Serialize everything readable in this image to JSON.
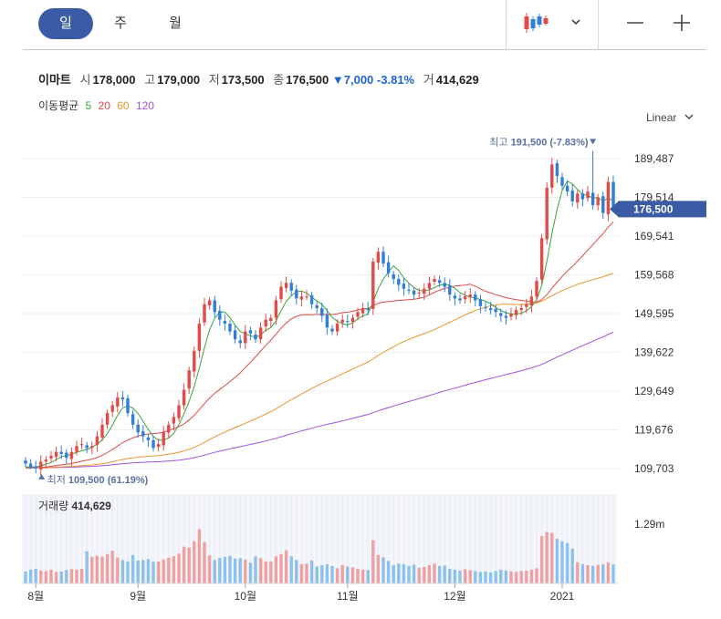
{
  "tabs": [
    {
      "label": "일",
      "active": true
    },
    {
      "label": "주",
      "active": false
    },
    {
      "label": "월",
      "active": false
    }
  ],
  "toolbar": {
    "chart_style_icon": "candlestick-icon",
    "dropdown_icon": "chevron-down-icon",
    "zoom_out_icon": "minus-icon",
    "zoom_in_icon": "plus-icon"
  },
  "stock": {
    "name": "이마트",
    "open_label": "시",
    "open": "178,000",
    "high_label": "고",
    "high": "179,000",
    "low_label": "저",
    "low": "173,500",
    "close_label": "종",
    "close": "176,500",
    "change": "▼7,000",
    "change_pct": "-3.81%",
    "volume_label": "거",
    "volume": "414,629"
  },
  "moving_average": {
    "label": "이동평균",
    "periods": [
      {
        "label": "5",
        "color": "#3aa43a"
      },
      {
        "label": "20",
        "color": "#e04a4a"
      },
      {
        "label": "60",
        "color": "#e8962e"
      },
      {
        "label": "120",
        "color": "#a050e0"
      }
    ]
  },
  "scale_mode": "Linear",
  "colors": {
    "up": "#e24a4a",
    "down": "#2f7ed8",
    "accent": "#3b5ba5",
    "vol_up": "#f0a0a0",
    "vol_down": "#8cc0ee"
  },
  "chart_data": {
    "type": "candlestick",
    "y_ticks": [
      "189,487",
      "179,514",
      "169,541",
      "159,568",
      "149,595",
      "139,622",
      "129,649",
      "119,676",
      "109,703"
    ],
    "y_tick_values": [
      189487,
      179514,
      169541,
      159568,
      149595,
      139622,
      129649,
      119676,
      109703
    ],
    "x_ticks": [
      {
        "label": "8월",
        "index": 2
      },
      {
        "label": "9월",
        "index": 22
      },
      {
        "label": "10월",
        "index": 43
      },
      {
        "label": "11월",
        "index": 63
      },
      {
        "label": "12월",
        "index": 84
      },
      {
        "label": "2021",
        "index": 105
      }
    ],
    "current_price_label": "176,500",
    "current_price": 176500,
    "high_marker": {
      "label": "최고",
      "value_text": "191,500 (-7.83%)",
      "value": 191500,
      "index": 111
    },
    "low_marker": {
      "label": "최저",
      "value_text": "109,500 (61.19%)",
      "value": 109500,
      "index": 1
    },
    "volume_label": "거래량",
    "volume_value": "414,629",
    "volume_tick": "1.29m",
    "volume_tick_value": 1290000,
    "closes": [
      111000,
      110000,
      109800,
      111500,
      112000,
      113000,
      114000,
      113500,
      112500,
      114000,
      115500,
      116000,
      115000,
      115500,
      118000,
      121000,
      124000,
      126000,
      128000,
      127500,
      124000,
      121000,
      119000,
      118000,
      117000,
      115000,
      116000,
      119000,
      121000,
      123000,
      126000,
      130000,
      135000,
      140000,
      147000,
      152000,
      153000,
      150000,
      148000,
      147000,
      145000,
      143000,
      142000,
      145000,
      144500,
      143000,
      146000,
      148000,
      148500,
      153000,
      156500,
      157500,
      155500,
      153500,
      154000,
      154000,
      152000,
      151000,
      149000,
      146000,
      145000,
      147000,
      148000,
      147500,
      148500,
      150000,
      151000,
      150500,
      163000,
      165500,
      162500,
      160000,
      158500,
      157000,
      156000,
      155500,
      154500,
      155000,
      156000,
      157500,
      158500,
      157500,
      156500,
      154500,
      153500,
      153000,
      154000,
      154500,
      153000,
      151500,
      151000,
      150500,
      150000,
      149000,
      148500,
      149500,
      150500,
      151000,
      152000,
      154000,
      158000,
      169000,
      182000,
      188000,
      185000,
      182500,
      181000,
      178500,
      180500,
      179000,
      181000,
      177500,
      179500,
      175500,
      183500,
      176500
    ],
    "volumes": [
      260000,
      300000,
      320000,
      280000,
      270000,
      300000,
      250000,
      260000,
      290000,
      310000,
      300000,
      320000,
      700000,
      580000,
      600000,
      580000,
      640000,
      710000,
      560000,
      510000,
      480000,
      620000,
      500000,
      510000,
      530000,
      470000,
      480000,
      520000,
      560000,
      590000,
      650000,
      800000,
      780000,
      920000,
      1180000,
      900000,
      610000,
      510000,
      560000,
      580000,
      600000,
      540000,
      550000,
      520000,
      450000,
      590000,
      550000,
      480000,
      480000,
      590000,
      640000,
      720000,
      590000,
      510000,
      420000,
      430000,
      500000,
      370000,
      400000,
      420000,
      380000,
      330000,
      400000,
      370000,
      350000,
      320000,
      300000,
      290000,
      940000,
      620000,
      570000,
      490000,
      400000,
      430000,
      420000,
      380000,
      410000,
      340000,
      360000,
      400000,
      430000,
      380000,
      390000,
      320000,
      300000,
      280000,
      310000,
      290000,
      270000,
      250000,
      260000,
      240000,
      270000,
      300000,
      280000,
      260000,
      250000,
      270000,
      280000,
      300000,
      330000,
      1030000,
      1120000,
      1100000,
      970000,
      920000,
      880000,
      760000,
      460000,
      420000,
      400000,
      380000,
      400000,
      420000,
      460000,
      414629
    ]
  }
}
